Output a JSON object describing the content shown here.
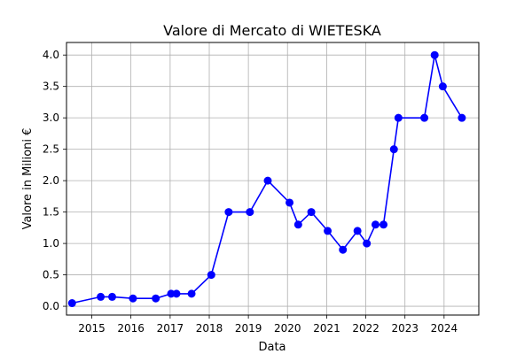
{
  "chart_data": {
    "type": "line",
    "title": "Valore di Mercato di WIETESKA",
    "xlabel": "Data",
    "ylabel": "Valore in Milioni €",
    "x_ticks": [
      "2015",
      "2016",
      "2017",
      "2018",
      "2019",
      "2020",
      "2021",
      "2022",
      "2023",
      "2024"
    ],
    "y_ticks": [
      "0.0",
      "0.5",
      "1.0",
      "1.5",
      "2.0",
      "2.5",
      "3.0",
      "3.5",
      "4.0"
    ],
    "xlim": [
      "2014-05-10",
      "2024-11-20"
    ],
    "ylim": [
      -0.14,
      4.2
    ],
    "grid": true,
    "color": "#0000ff",
    "series": [
      {
        "points": [
          {
            "x": "2014-07-01",
            "y": 0.05
          },
          {
            "x": "2015-03-25",
            "y": 0.15
          },
          {
            "x": "2015-07-10",
            "y": 0.15
          },
          {
            "x": "2016-01-20",
            "y": 0.125
          },
          {
            "x": "2016-08-20",
            "y": 0.125
          },
          {
            "x": "2017-01-10",
            "y": 0.2
          },
          {
            "x": "2017-03-01",
            "y": 0.2
          },
          {
            "x": "2017-07-20",
            "y": 0.2
          },
          {
            "x": "2018-01-20",
            "y": 0.5
          },
          {
            "x": "2018-07-01",
            "y": 1.5
          },
          {
            "x": "2019-01-15",
            "y": 1.5
          },
          {
            "x": "2019-07-01",
            "y": 2.0
          },
          {
            "x": "2020-01-20",
            "y": 1.65
          },
          {
            "x": "2020-04-10",
            "y": 1.3
          },
          {
            "x": "2020-08-10",
            "y": 1.5
          },
          {
            "x": "2021-01-10",
            "y": 1.2
          },
          {
            "x": "2021-06-01",
            "y": 0.9
          },
          {
            "x": "2021-10-15",
            "y": 1.2
          },
          {
            "x": "2022-01-10",
            "y": 1.0
          },
          {
            "x": "2022-04-01",
            "y": 1.3
          },
          {
            "x": "2022-06-15",
            "y": 1.3
          },
          {
            "x": "2022-09-20",
            "y": 2.5
          },
          {
            "x": "2022-11-01",
            "y": 3.0
          },
          {
            "x": "2023-07-01",
            "y": 3.0
          },
          {
            "x": "2023-10-05",
            "y": 4.0
          },
          {
            "x": "2023-12-20",
            "y": 3.5
          },
          {
            "x": "2024-06-15",
            "y": 3.0
          }
        ]
      }
    ]
  }
}
